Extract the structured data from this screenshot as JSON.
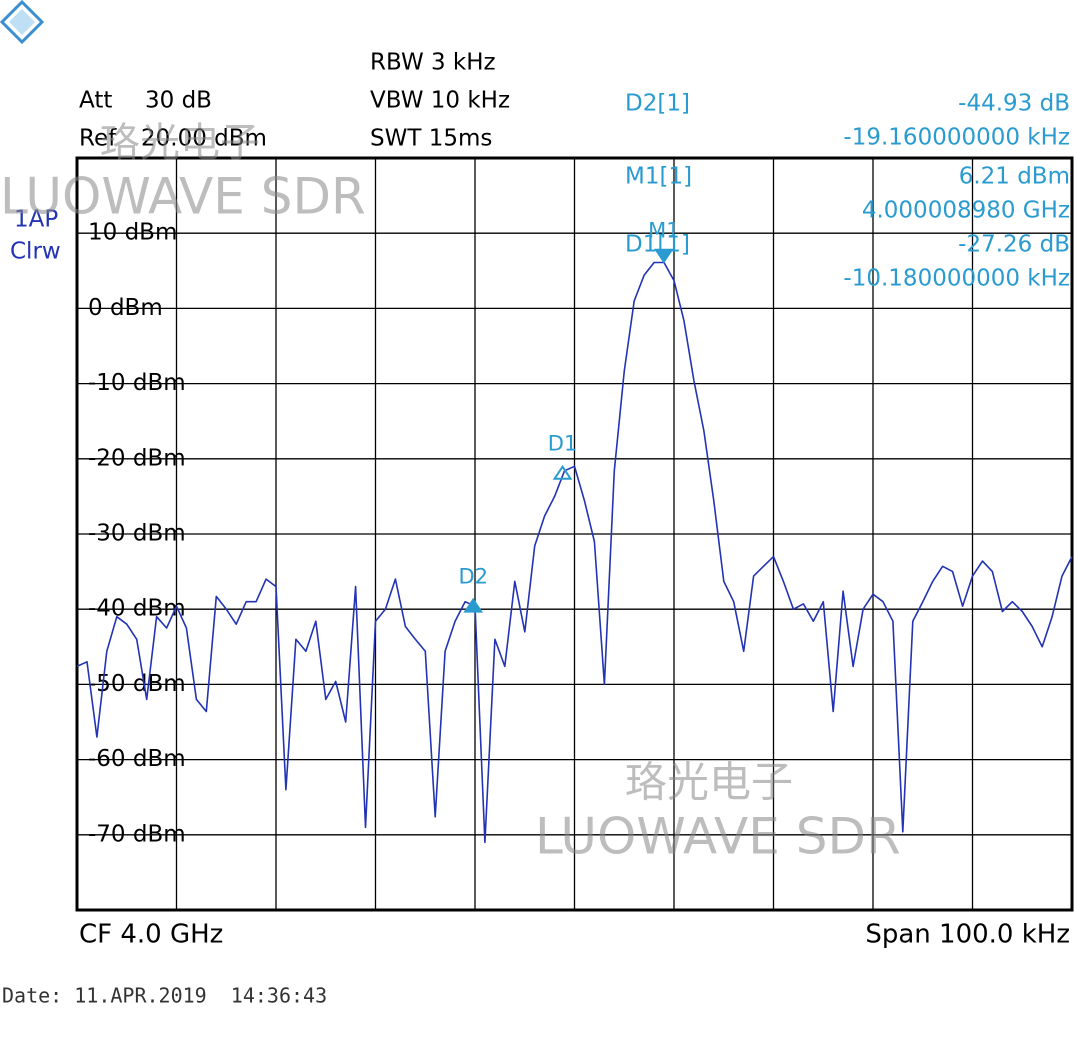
{
  "header": {
    "att_label": "Att",
    "att_value": "30 dB",
    "ref_label": "Ref",
    "ref_value": "20.00 dBm",
    "rbw": "RBW 3 kHz",
    "vbw": "VBW 10 kHz",
    "swt": "SWT 15ms",
    "trace_mode": [
      "1AP",
      "Clrw"
    ]
  },
  "readouts": [
    {
      "label": "D2[1]",
      "lines": [
        "-44.93 dB",
        "-19.160000000 kHz"
      ]
    },
    {
      "label": "M1[1]",
      "lines": [
        "6.21 dBm",
        "4.000008980 GHz"
      ]
    },
    {
      "label": "D1[1]",
      "lines": [
        "-27.26 dB",
        "-10.180000000 kHz"
      ]
    }
  ],
  "footer": {
    "center": "CF 4.0 GHz",
    "span": "Span 100.0 kHz",
    "date": "Date: 11.APR.2019  14:36:43"
  },
  "watermarks": [
    "珞光电子",
    "LUOWAVE SDR",
    "珞光电子",
    "LUOWAVE SDR"
  ],
  "chart_data": {
    "type": "line",
    "xlim": [
      -50,
      50
    ],
    "xticks": [
      -40,
      -30,
      -20,
      -10,
      0,
      10,
      20,
      30,
      40
    ],
    "ylim": [
      -80,
      20
    ],
    "yticks": [
      {
        "value": 10,
        "label": "10 dBm"
      },
      {
        "value": 0,
        "label": "0 dBm"
      },
      {
        "value": -10,
        "label": "-10 dBm"
      },
      {
        "value": -20,
        "label": "-20 dBm"
      },
      {
        "value": -30,
        "label": "-30 dBm"
      },
      {
        "value": -40,
        "label": "-40 dBm"
      },
      {
        "value": -50,
        "label": "-50 dBm"
      },
      {
        "value": -60,
        "label": "-60 dBm"
      },
      {
        "value": -70,
        "label": "-70 dBm"
      }
    ],
    "grid": true,
    "series": [
      {
        "name": "1AP",
        "color": "#2233b4",
        "x": [
          -50,
          -49,
          -48,
          -47,
          -46,
          -45,
          -44,
          -43,
          -42,
          -41,
          -40,
          -39,
          -38,
          -37,
          -36,
          -35,
          -34,
          -33,
          -32,
          -31,
          -30,
          -29,
          -28,
          -27,
          -26,
          -25,
          -24,
          -23,
          -22,
          -21,
          -20,
          -19,
          -18,
          -17,
          -16,
          -15,
          -14,
          -13,
          -12,
          -11,
          -10,
          -9,
          -8,
          -7,
          -6,
          -5,
          -4,
          -3,
          -2,
          -1,
          0,
          1,
          2,
          3,
          4,
          5,
          6,
          7,
          8,
          9,
          10,
          11,
          12,
          13,
          14,
          15,
          16,
          17,
          18,
          19,
          20,
          21,
          22,
          23,
          24,
          25,
          26,
          27,
          28,
          29,
          30,
          31,
          32,
          33,
          34,
          35,
          36,
          37,
          38,
          39,
          40,
          41,
          42,
          43,
          44,
          45,
          46,
          47,
          48,
          49,
          50
        ],
        "values": [
          -47.6,
          -47,
          -57,
          -45.6,
          -41,
          -42,
          -44,
          -52,
          -41,
          -42.5,
          -39.6,
          -42.5,
          -52,
          -53.6,
          -38.3,
          -40,
          -42,
          -39,
          -39,
          -36,
          -37,
          -64,
          -44,
          -45.6,
          -41.6,
          -52,
          -49.6,
          -55,
          -37,
          -69,
          -41.6,
          -40,
          -36,
          -42.3,
          -44,
          -45.6,
          -67.6,
          -45.6,
          -41.6,
          -39,
          -39.6,
          -71,
          -44,
          -47.6,
          -36.3,
          -43,
          -31.6,
          -27.6,
          -25,
          -21.6,
          -21,
          -25.6,
          -31,
          -50,
          -21.6,
          -8.3,
          1,
          4.4,
          6.1,
          6.1,
          3.7,
          -1.6,
          -9.6,
          -16.3,
          -25.6,
          -36.3,
          -39,
          -45.6,
          -35.6,
          -34.3,
          -33,
          -36.3,
          -40,
          -39.3,
          -41.6,
          -39,
          -53.6,
          -37.6,
          -47.6,
          -40,
          -38,
          -39,
          -41.6,
          -69.6,
          -41.6,
          -39,
          -36.3,
          -34.3,
          -35,
          -39.6,
          -35.6,
          -33.6,
          -35,
          -40.3,
          -39,
          -40.3,
          -42.3,
          -45,
          -41,
          -35.6,
          -33
        ]
      }
    ],
    "markers": [
      {
        "name": "M1",
        "x": 8.98,
        "y": 6.21,
        "direction": "down",
        "filled": true
      },
      {
        "name": "D1",
        "x": -1.2,
        "y": -21.05,
        "direction": "up",
        "filled": false
      },
      {
        "name": "D2",
        "x": -10.18,
        "y": -38.72,
        "direction": "up",
        "filled": true
      }
    ]
  }
}
